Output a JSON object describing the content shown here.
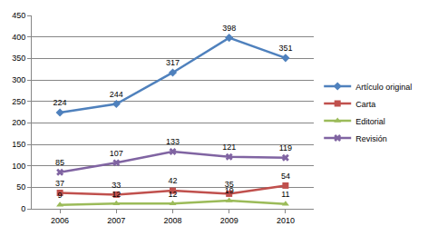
{
  "chart_data": {
    "type": "line",
    "categories": [
      "2006",
      "2007",
      "2008",
      "2009",
      "2010"
    ],
    "series": [
      {
        "name": "Artículo original",
        "color": "#4f81bd",
        "marker": "diamond",
        "values": [
          224,
          244,
          317,
          398,
          351
        ]
      },
      {
        "name": "Carta",
        "color": "#c0504d",
        "marker": "square",
        "values": [
          37,
          33,
          42,
          35,
          54
        ]
      },
      {
        "name": "Editorial",
        "color": "#9bbb59",
        "marker": "triangle-up",
        "values": [
          9,
          12,
          12,
          19,
          11
        ]
      },
      {
        "name": "Revisión",
        "color": "#8064a2",
        "marker": "x",
        "values": [
          85,
          107,
          133,
          121,
          119
        ]
      }
    ],
    "ylim": [
      0,
      450
    ],
    "yticks": [
      0,
      50,
      100,
      150,
      200,
      250,
      300,
      350,
      400,
      450
    ],
    "grid": true,
    "legend": "right",
    "data_labels": true
  }
}
